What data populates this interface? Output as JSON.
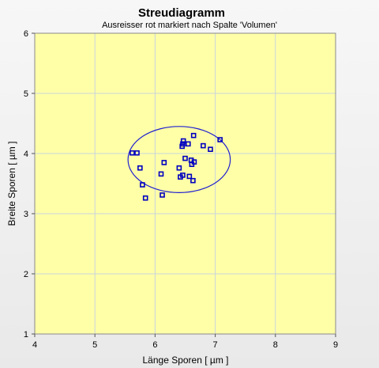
{
  "chart_data": {
    "type": "scatter",
    "title": "Streudiagramm",
    "subtitle": "Ausreisser rot markiert nach Spalte 'Volumen'",
    "xlabel": "Länge Sporen [ µm ]",
    "ylabel": "Breite Sporen [ µm ]",
    "xlim": [
      4,
      9
    ],
    "ylim": [
      1,
      6
    ],
    "xticks": [
      "4",
      "5",
      "6",
      "7",
      "8",
      "9"
    ],
    "yticks": [
      "1",
      "2",
      "3",
      "4",
      "5",
      "6"
    ],
    "grid": true,
    "legend": "none",
    "colors": {
      "plot_background": "#ffffa8",
      "points": "#0000c0",
      "ellipse": "#2020d0",
      "grid": "#c9d4dc"
    },
    "points": [
      {
        "x": 5.62,
        "y": 4.01
      },
      {
        "x": 5.7,
        "y": 4.01
      },
      {
        "x": 5.75,
        "y": 3.76
      },
      {
        "x": 5.79,
        "y": 3.48
      },
      {
        "x": 5.84,
        "y": 3.26
      },
      {
        "x": 6.1,
        "y": 3.66
      },
      {
        "x": 6.12,
        "y": 3.31
      },
      {
        "x": 6.15,
        "y": 3.85
      },
      {
        "x": 6.4,
        "y": 3.76
      },
      {
        "x": 6.42,
        "y": 3.61
      },
      {
        "x": 6.45,
        "y": 4.12
      },
      {
        "x": 6.46,
        "y": 3.64
      },
      {
        "x": 6.46,
        "y": 4.16
      },
      {
        "x": 6.47,
        "y": 4.21
      },
      {
        "x": 6.5,
        "y": 3.92
      },
      {
        "x": 6.55,
        "y": 4.16
      },
      {
        "x": 6.57,
        "y": 3.62
      },
      {
        "x": 6.6,
        "y": 3.89
      },
      {
        "x": 6.61,
        "y": 3.82
      },
      {
        "x": 6.63,
        "y": 3.55
      },
      {
        "x": 6.64,
        "y": 4.3
      },
      {
        "x": 6.65,
        "y": 3.86
      },
      {
        "x": 6.8,
        "y": 4.13
      },
      {
        "x": 6.92,
        "y": 4.07
      },
      {
        "x": 7.08,
        "y": 4.23
      }
    ],
    "ellipse": {
      "cx": 6.4,
      "cy": 3.9,
      "rx": 0.85,
      "ry": 0.55
    }
  }
}
